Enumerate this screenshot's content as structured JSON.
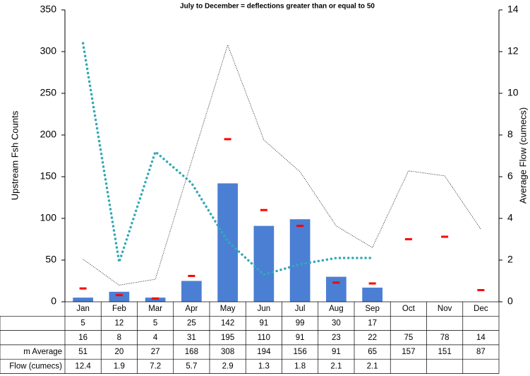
{
  "chart_data": {
    "type": "bar",
    "title": "July to December = deflections greater than or equal to 50",
    "y_label": "Upstream  Fsh Counts",
    "y2_label": "Average Flow (cumecs)",
    "categories": [
      "Jan",
      "Feb",
      "Mar",
      "Apr",
      "May",
      "Jun",
      "Jul",
      "Aug",
      "Sep",
      "Oct",
      "Nov",
      "Dec"
    ],
    "series": [
      {
        "type": "bar",
        "color": "#4a7fd4",
        "values": [
          5,
          12,
          5,
          25,
          142,
          91,
          99,
          30,
          17,
          null,
          null,
          null
        ]
      },
      {
        "type": "marker",
        "color": "#ff0000",
        "values": [
          16,
          8,
          4,
          31,
          195,
          110,
          91,
          23,
          22,
          75,
          78,
          14
        ]
      },
      {
        "type": "line",
        "name": "m Average",
        "color": "#000000",
        "values": [
          51,
          20,
          27,
          168,
          308,
          194,
          156,
          91,
          65,
          157,
          151,
          87
        ]
      },
      {
        "type": "line",
        "name": "Flow (cumecs)",
        "color": "#33a9b5",
        "axis": "y2",
        "values": [
          12.4,
          1.9,
          7.2,
          5.7,
          2.9,
          1.3,
          1.8,
          2.1,
          2.1,
          null,
          null,
          null
        ]
      }
    ],
    "ylim": [
      0,
      350
    ],
    "yticks": [
      0,
      50,
      100,
      150,
      200,
      250,
      300,
      350
    ],
    "y2lim": [
      0,
      14
    ],
    "y2ticks": [
      0,
      2,
      4,
      6,
      8,
      10,
      12,
      14
    ],
    "data_table": true
  }
}
